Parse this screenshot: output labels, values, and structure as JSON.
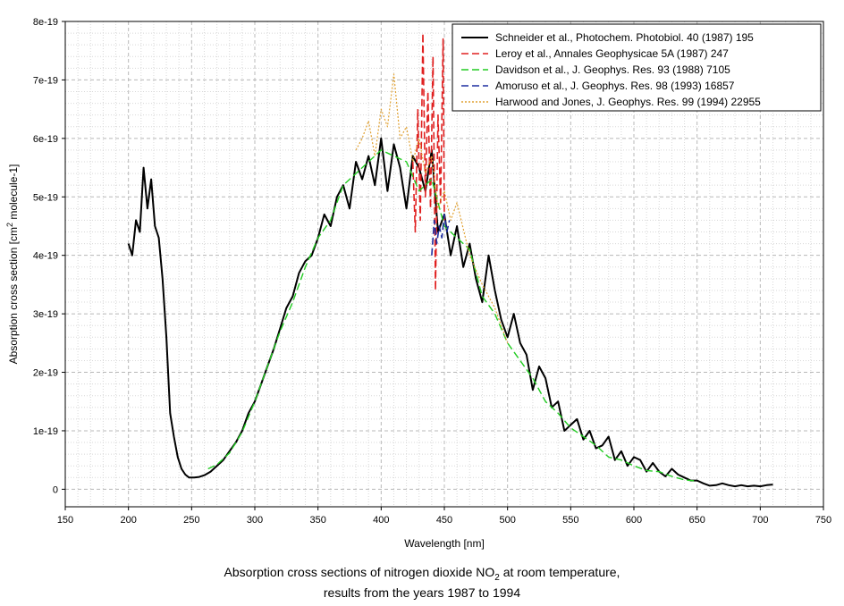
{
  "caption": {
    "line1_prefix": "Absorption cross sections of nitrogen dioxide NO",
    "line1_sub": "2",
    "line1_suffix": " at room temperature,",
    "line2": "results from the years 1987 to 1994"
  },
  "chart_data": {
    "type": "line",
    "xlabel": "Wavelength [nm]",
    "ylabel_prefix": "Absorption cross section [cm",
    "ylabel_sup": "2",
    "ylabel_suffix": " molecule-1]",
    "xlim": [
      150,
      750
    ],
    "ylim": [
      -3e-20,
      8e-19
    ],
    "x_ticks": [
      150,
      200,
      250,
      300,
      350,
      400,
      450,
      500,
      550,
      600,
      650,
      700,
      750
    ],
    "y_ticks": [
      {
        "value": 0,
        "label": "0"
      },
      {
        "value": 1e-19,
        "label": "1e-19"
      },
      {
        "value": 2e-19,
        "label": "2e-19"
      },
      {
        "value": 3e-19,
        "label": "3e-19"
      },
      {
        "value": 4e-19,
        "label": "4e-19"
      },
      {
        "value": 5e-19,
        "label": "5e-19"
      },
      {
        "value": 6e-19,
        "label": "6e-19"
      },
      {
        "value": 7e-19,
        "label": "7e-19"
      },
      {
        "value": 8e-19,
        "label": "8e-19"
      }
    ],
    "grid": true,
    "legend_position": "top-right",
    "series": [
      {
        "name": "Schneider et al., Photochem. Photobiol. 40 (1987) 195",
        "color": "#000000",
        "dash": "solid",
        "width": 2,
        "x": [
          200,
          203,
          206,
          209,
          212,
          215,
          218,
          221,
          224,
          227,
          230,
          233,
          236,
          239,
          242,
          245,
          248,
          252,
          256,
          260,
          265,
          270,
          275,
          280,
          285,
          290,
          295,
          300,
          305,
          310,
          315,
          320,
          325,
          330,
          335,
          340,
          345,
          350,
          355,
          360,
          365,
          370,
          375,
          380,
          385,
          390,
          395,
          400,
          405,
          410,
          415,
          420,
          425,
          430,
          435,
          440,
          445,
          450,
          455,
          460,
          465,
          470,
          475,
          480,
          485,
          490,
          495,
          500,
          505,
          510,
          515,
          520,
          525,
          530,
          535,
          540,
          545,
          550,
          555,
          560,
          565,
          570,
          575,
          580,
          585,
          590,
          595,
          600,
          605,
          610,
          615,
          620,
          625,
          630,
          635,
          640,
          645,
          650,
          655,
          660,
          665,
          670,
          675,
          680,
          685,
          690,
          695,
          700,
          705,
          710
        ],
        "y": [
          4.2e-19,
          4e-19,
          4.6e-19,
          4.4e-19,
          5.5e-19,
          4.8e-19,
          5.3e-19,
          4.5e-19,
          4.3e-19,
          3.6e-19,
          2.6e-19,
          1.3e-19,
          9e-20,
          5.5e-20,
          3.5e-20,
          2.5e-20,
          2e-20,
          2e-20,
          2.1e-20,
          2.4e-20,
          3e-20,
          4e-20,
          5e-20,
          6.5e-20,
          8e-20,
          1e-19,
          1.3e-19,
          1.5e-19,
          1.8e-19,
          2.1e-19,
          2.4e-19,
          2.75e-19,
          3.1e-19,
          3.3e-19,
          3.7e-19,
          3.9e-19,
          4e-19,
          4.3e-19,
          4.7e-19,
          4.5e-19,
          5e-19,
          5.2e-19,
          4.8e-19,
          5.6e-19,
          5.3e-19,
          5.7e-19,
          5.2e-19,
          6e-19,
          5.1e-19,
          5.9e-19,
          5.5e-19,
          4.8e-19,
          5.7e-19,
          5.5e-19,
          5.1e-19,
          5.8e-19,
          4.4e-19,
          4.7e-19,
          4e-19,
          4.5e-19,
          3.8e-19,
          4.2e-19,
          3.6e-19,
          3.2e-19,
          4e-19,
          3.4e-19,
          2.9e-19,
          2.6e-19,
          3e-19,
          2.5e-19,
          2.3e-19,
          1.7e-19,
          2.1e-19,
          1.9e-19,
          1.4e-19,
          1.5e-19,
          1e-19,
          1.1e-19,
          1.2e-19,
          8.5e-20,
          1e-19,
          7e-20,
          7.5e-20,
          9e-20,
          5e-20,
          6.5e-20,
          4e-20,
          5.5e-20,
          5e-20,
          3e-20,
          4.5e-20,
          3e-20,
          2.2e-20,
          3.5e-20,
          2.5e-20,
          2e-20,
          1.5e-20,
          1.5e-20,
          1e-20,
          6e-21,
          7e-21,
          1e-20,
          7e-21,
          5e-21,
          7e-21,
          5e-21,
          6e-21,
          5e-21,
          7e-21,
          8e-21
        ]
      },
      {
        "name": "Leroy et al., Annales Geophysicae 5A (1987) 247",
        "color": "#e02020",
        "dash": "8,4",
        "width": 1.6,
        "x": [
          425,
          427,
          429,
          431,
          433,
          435,
          437,
          439,
          441,
          443,
          445,
          447,
          449,
          450
        ],
        "y": [
          5.6e-19,
          4.4e-19,
          6.5e-19,
          4.6e-19,
          7.8e-19,
          5e-19,
          6.8e-19,
          4.8e-19,
          7.4e-19,
          3.4e-19,
          6.4e-19,
          4.9e-19,
          7.7e-19,
          4.6e-19
        ]
      },
      {
        "name": "Davidson et al., J. Geophys. Res. 93 (1988) 7105",
        "color": "#22cc22",
        "dash": "8,4",
        "width": 1.4,
        "x": [
          263,
          270,
          280,
          290,
          300,
          310,
          320,
          330,
          340,
          350,
          360,
          370,
          380,
          390,
          400,
          410,
          420,
          430,
          440,
          450,
          460,
          470,
          480,
          490,
          500,
          510,
          520,
          530,
          540,
          550,
          560,
          570,
          580,
          590,
          600,
          610,
          620,
          630,
          640,
          650
        ],
        "y": [
          3.5e-20,
          4.2e-20,
          6.2e-20,
          9.8e-20,
          1.5e-19,
          2.1e-19,
          2.7e-19,
          3.2e-19,
          3.8e-19,
          4.3e-19,
          4.6e-19,
          5.2e-19,
          5.4e-19,
          5.6e-19,
          5.8e-19,
          5.7e-19,
          5.6e-19,
          5.1e-19,
          5.3e-19,
          4.5e-19,
          4.3e-19,
          4.1e-19,
          3.3e-19,
          3e-19,
          2.5e-19,
          2.2e-19,
          1.9e-19,
          1.5e-19,
          1.3e-19,
          1.05e-19,
          9e-20,
          7.5e-20,
          5.5e-20,
          5e-20,
          4e-20,
          3.2e-20,
          3e-20,
          2.2e-20,
          1.6e-20,
          1.4e-20
        ]
      },
      {
        "name": "Amoruso et al., J. Geophys. Res. 98 (1993) 16857",
        "color": "#1f2fa0",
        "dash": "8,4",
        "width": 1.6,
        "x": [
          440,
          442,
          444,
          446,
          448,
          450,
          452,
          454
        ],
        "y": [
          4e-19,
          4.6e-19,
          4.2e-19,
          4.5e-19,
          4.3e-19,
          4.7e-19,
          4.4e-19,
          4.6e-19
        ]
      },
      {
        "name": "Harwood and Jones, J. Geophys. Res. 99 (1994) 22955",
        "color": "#e0a030",
        "dash": "2,2",
        "width": 1.2,
        "x": [
          380,
          385,
          390,
          395,
          400,
          405,
          410,
          415,
          420,
          425,
          430,
          435,
          440,
          445,
          450,
          455,
          460,
          470,
          480,
          490,
          500
        ],
        "y": [
          5.8e-19,
          6e-19,
          6.3e-19,
          5.7e-19,
          6.5e-19,
          6.2e-19,
          7.1e-19,
          6e-19,
          6.2e-19,
          5.6e-19,
          6e-19,
          5.4e-19,
          5.7e-19,
          4.8e-19,
          5.1e-19,
          4.6e-19,
          4.9e-19,
          4e-19,
          3.5e-19,
          3.1e-19,
          2.5e-19
        ]
      }
    ]
  }
}
